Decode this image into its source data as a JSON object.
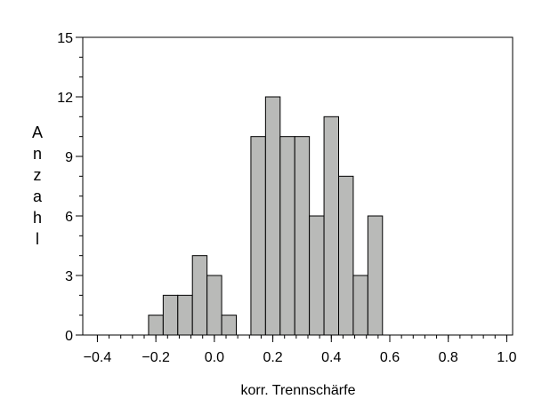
{
  "chart_data": {
    "type": "bar",
    "xlabel": "korr. Trennschärfe",
    "ylabel": "Anzahl",
    "xlim": [
      -0.45,
      1.02
    ],
    "ylim": [
      0,
      15
    ],
    "x_ticks": [
      -0.4,
      -0.2,
      0.0,
      0.2,
      0.4,
      0.6,
      0.8,
      1.0
    ],
    "x_tick_labels": [
      "−0.4",
      "−0.2",
      "0.0",
      "0.2",
      "0.4",
      "0.6",
      "0.8",
      "1.0"
    ],
    "y_ticks": [
      0,
      3,
      6,
      9,
      12,
      15
    ],
    "y_tick_labels": [
      "0",
      "3",
      "6",
      "9",
      "12",
      "15"
    ],
    "bin_width": 0.05,
    "bins": [
      {
        "start": -0.225,
        "count": 1
      },
      {
        "start": -0.175,
        "count": 2
      },
      {
        "start": -0.125,
        "count": 2
      },
      {
        "start": -0.075,
        "count": 4
      },
      {
        "start": -0.025,
        "count": 3
      },
      {
        "start": 0.025,
        "count": 1
      },
      {
        "start": 0.125,
        "count": 10
      },
      {
        "start": 0.175,
        "count": 12
      },
      {
        "start": 0.225,
        "count": 10
      },
      {
        "start": 0.275,
        "count": 10
      },
      {
        "start": 0.325,
        "count": 6
      },
      {
        "start": 0.375,
        "count": 11
      },
      {
        "start": 0.425,
        "count": 8
      },
      {
        "start": 0.475,
        "count": 3
      },
      {
        "start": 0.525,
        "count": 6
      }
    ],
    "bar_color": "#b9bab8",
    "bar_edge_color": "#000000",
    "grid": false
  }
}
